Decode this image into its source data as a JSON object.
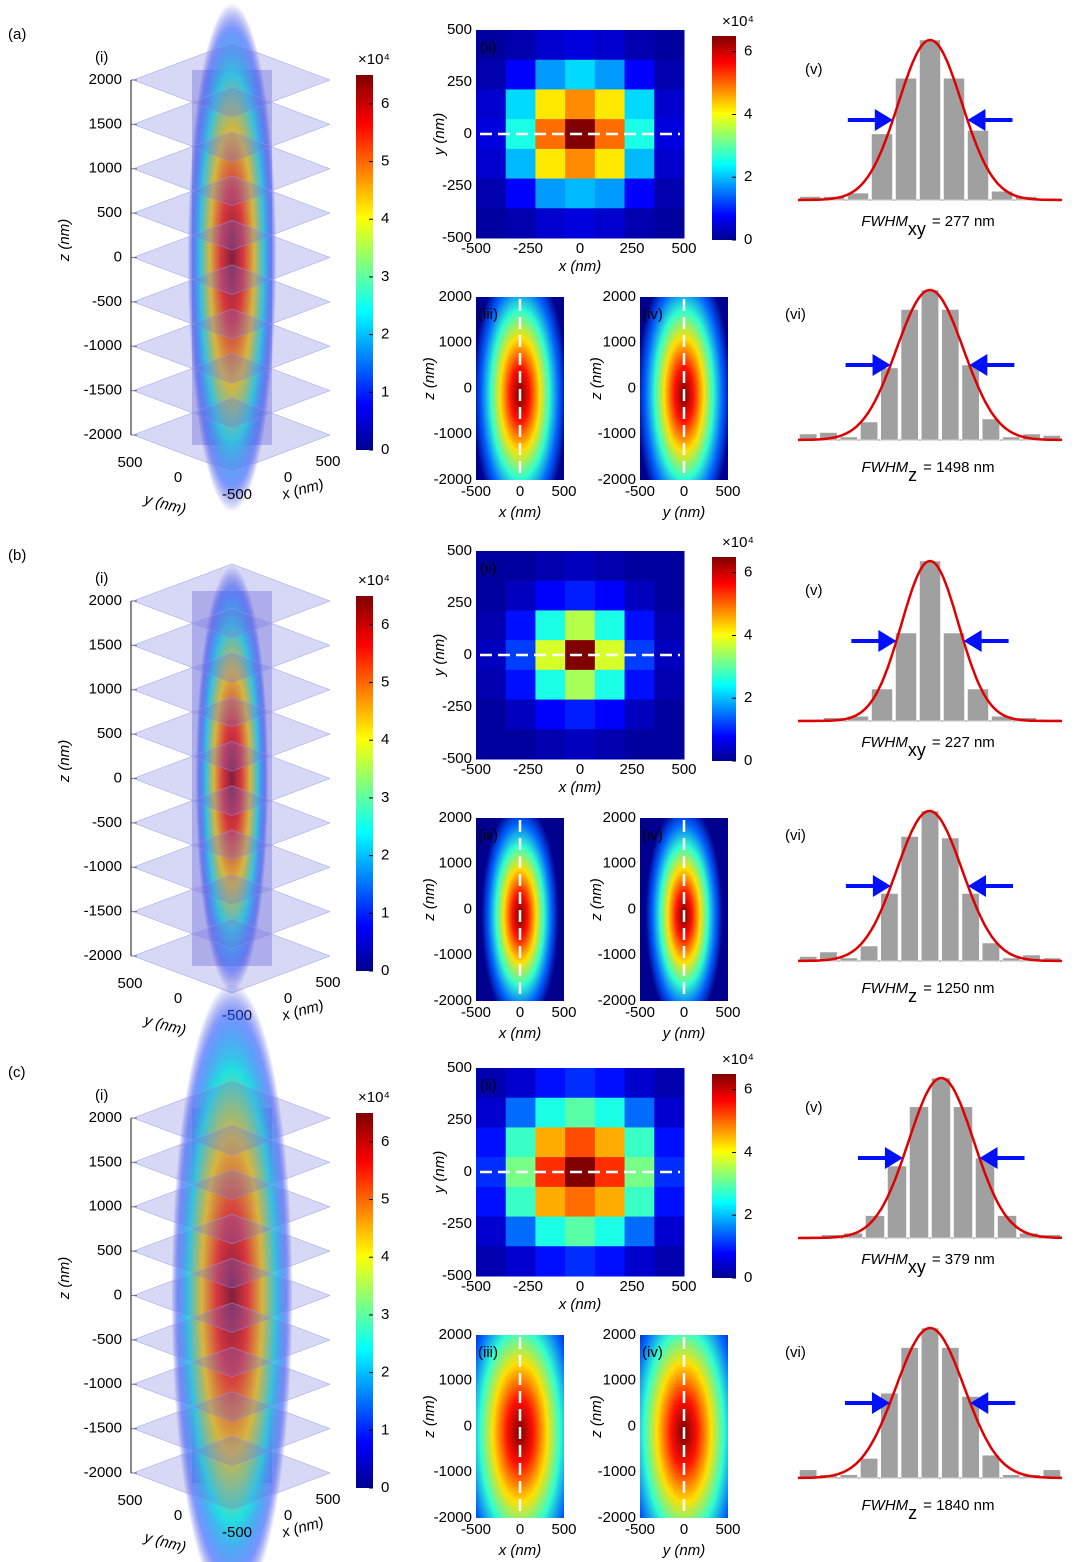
{
  "common": {
    "panel_labels": [
      "(i)",
      "(ii)",
      "(iii)",
      "(iv)",
      "(v)",
      "(vi)"
    ],
    "z_label": "z (nm)",
    "y_label": "y (nm)",
    "x_label": "x (nm)",
    "colorbar_exponent": "×10⁴",
    "z_ticks": [
      2000,
      1500,
      1000,
      500,
      0,
      -500,
      -1000,
      -1500,
      -2000
    ],
    "stack_y_ticks": [
      500,
      0,
      -500
    ],
    "stack_x_ticks": [
      0,
      500
    ],
    "colorbar_ticks": [
      0,
      1,
      2,
      3,
      4,
      5,
      6
    ],
    "heatmap_colorbar_ticks": [
      0,
      2,
      4,
      6
    ],
    "xy_ticks": [
      -500,
      -250,
      0,
      250,
      500
    ],
    "section_h_ticks": [
      -500,
      0,
      500
    ],
    "section_z_ticks": [
      2000,
      1000,
      0,
      -1000,
      -2000
    ]
  },
  "rows": [
    {
      "label": "(a)",
      "heatmap": [
        [
          0.2,
          0.3,
          0.5,
          0.6,
          0.5,
          0.3,
          0.2
        ],
        [
          0.3,
          0.8,
          1.8,
          2.2,
          1.8,
          0.8,
          0.3
        ],
        [
          0.5,
          2.2,
          4.2,
          4.8,
          4.2,
          2.2,
          0.5
        ],
        [
          0.6,
          2.6,
          5.0,
          6.5,
          5.0,
          2.6,
          0.6
        ],
        [
          0.5,
          2.0,
          4.2,
          4.8,
          4.2,
          2.0,
          0.5
        ],
        [
          0.3,
          0.8,
          1.8,
          2.0,
          1.8,
          0.8,
          0.3
        ],
        [
          0.2,
          0.3,
          0.5,
          0.6,
          0.5,
          0.3,
          0.2
        ]
      ],
      "hist_xy": [
        0.02,
        0.02,
        0.04,
        0.38,
        0.7,
        0.92,
        0.7,
        0.4,
        0.05,
        0.02,
        0.01
      ],
      "hist_z": [
        0.04,
        0.05,
        0.02,
        0.12,
        0.48,
        0.87,
        1.0,
        0.87,
        0.5,
        0.14,
        0.02,
        0.04,
        0.03
      ],
      "fwhm_xy": {
        "name": "FWHM",
        "sub": "xy",
        "value": "= 277 nm"
      },
      "fwhm_z": {
        "name": "FWHM",
        "sub": "z",
        "value": "= 1498 nm"
      }
    },
    {
      "label": "(b)",
      "heatmap": [
        [
          0.2,
          0.2,
          0.3,
          0.4,
          0.3,
          0.2,
          0.2
        ],
        [
          0.2,
          0.4,
          0.8,
          1.0,
          0.8,
          0.4,
          0.2
        ],
        [
          0.3,
          0.9,
          2.6,
          3.6,
          2.6,
          0.9,
          0.3
        ],
        [
          0.4,
          1.2,
          3.8,
          6.5,
          3.8,
          1.2,
          0.4
        ],
        [
          0.3,
          0.9,
          2.6,
          3.5,
          2.6,
          0.9,
          0.3
        ],
        [
          0.2,
          0.4,
          0.8,
          1.0,
          0.8,
          0.4,
          0.2
        ],
        [
          0.2,
          0.2,
          0.3,
          0.4,
          0.3,
          0.2,
          0.2
        ]
      ],
      "hist_xy": [
        0.01,
        0.02,
        0.03,
        0.2,
        0.55,
        1.0,
        0.55,
        0.2,
        0.03,
        0.02,
        0.01
      ],
      "hist_z": [
        0.03,
        0.06,
        0.02,
        0.1,
        0.45,
        0.83,
        1.0,
        0.82,
        0.45,
        0.12,
        0.02,
        0.04,
        0.02
      ],
      "fwhm_xy": {
        "name": "FWHM",
        "sub": "xy",
        "value": "= 227 nm"
      },
      "fwhm_z": {
        "name": "FWHM",
        "sub": "z",
        "value": "= 1250 nm"
      }
    },
    {
      "label": "(c)",
      "heatmap": [
        [
          0.3,
          0.5,
          0.9,
          1.1,
          0.9,
          0.5,
          0.3
        ],
        [
          0.5,
          1.5,
          2.6,
          3.0,
          2.6,
          1.5,
          0.5
        ],
        [
          0.9,
          2.8,
          4.6,
          5.2,
          4.6,
          2.8,
          0.9
        ],
        [
          1.1,
          3.2,
          5.4,
          6.5,
          5.4,
          3.2,
          1.1
        ],
        [
          0.9,
          2.8,
          4.6,
          5.0,
          4.6,
          2.8,
          0.9
        ],
        [
          0.5,
          1.5,
          2.6,
          3.0,
          2.6,
          1.5,
          0.5
        ],
        [
          0.3,
          0.5,
          0.9,
          1.1,
          0.9,
          0.5,
          0.3
        ]
      ],
      "hist_xy": [
        0.01,
        0.02,
        0.03,
        0.14,
        0.45,
        0.82,
        1.0,
        0.82,
        0.5,
        0.14,
        0.03,
        0.02
      ],
      "hist_z": [
        0.05,
        0.02,
        0.02,
        0.12,
        0.52,
        0.8,
        0.92,
        0.8,
        0.5,
        0.14,
        0.02,
        0.02,
        0.05
      ],
      "fwhm_xy": {
        "name": "FWHM",
        "sub": "xy",
        "value": "= 379 nm"
      },
      "fwhm_z": {
        "name": "FWHM",
        "sub": "z",
        "value": "= 1840 nm"
      }
    }
  ]
}
